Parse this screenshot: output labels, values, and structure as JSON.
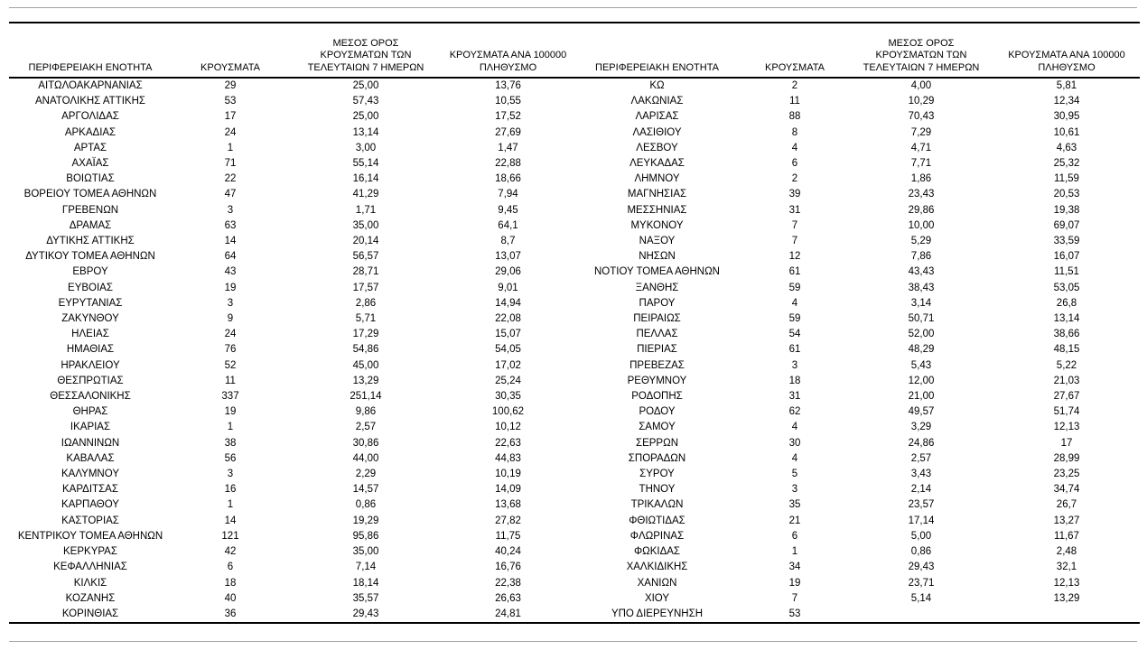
{
  "table": {
    "headers": {
      "region": "ΠΕΡΙΦΕΡΕΙΑΚΗ ΕΝΟΤΗΤΑ",
      "cases": "ΚΡΟΥΣΜΑΤΑ",
      "avg7_line1": "ΜΕΣΟΣ ΟΡΟΣ",
      "avg7_line2": "ΚΡΟΥΣΜΑΤΩΝ ΤΩΝ",
      "avg7_line3": "ΤΕΛΕΥΤΑΙΩΝ 7 ΗΜΕΡΩΝ",
      "per100k_line1": "ΚΡΟΥΣΜΑΤΑ ΑΝΑ 100000",
      "per100k_line2": "ΠΛΗΘΥΣΜΟ"
    },
    "left_rows": [
      [
        "ΑΙΤΩΛΟΑΚΑΡΝΑΝΙΑΣ",
        "29",
        "25,00",
        "13,76"
      ],
      [
        "ΑΝΑΤΟΛΙΚΗΣ ΑΤΤΙΚΗΣ",
        "53",
        "57,43",
        "10,55"
      ],
      [
        "ΑΡΓΟΛΙΔΑΣ",
        "17",
        "25,00",
        "17,52"
      ],
      [
        "ΑΡΚΑΔΙΑΣ",
        "24",
        "13,14",
        "27,69"
      ],
      [
        "ΑΡΤΑΣ",
        "1",
        "3,00",
        "1,47"
      ],
      [
        "ΑΧΑΪΑΣ",
        "71",
        "55,14",
        "22,88"
      ],
      [
        "ΒΟΙΩΤΙΑΣ",
        "22",
        "16,14",
        "18,66"
      ],
      [
        "ΒΟΡΕΙΟΥ ΤΟΜΕΑ ΑΘΗΝΩΝ",
        "47",
        "41,29",
        "7,94"
      ],
      [
        "ΓΡΕΒΕΝΩΝ",
        "3",
        "1,71",
        "9,45"
      ],
      [
        "ΔΡΑΜΑΣ",
        "63",
        "35,00",
        "64,1"
      ],
      [
        "ΔΥΤΙΚΗΣ ΑΤΤΙΚΗΣ",
        "14",
        "20,14",
        "8,7"
      ],
      [
        "ΔΥΤΙΚΟΥ ΤΟΜΕΑ ΑΘΗΝΩΝ",
        "64",
        "56,57",
        "13,07"
      ],
      [
        "ΕΒΡΟΥ",
        "43",
        "28,71",
        "29,06"
      ],
      [
        "ΕΥΒΟΙΑΣ",
        "19",
        "17,57",
        "9,01"
      ],
      [
        "ΕΥΡΥΤΑΝΙΑΣ",
        "3",
        "2,86",
        "14,94"
      ],
      [
        "ΖΑΚΥΝΘΟΥ",
        "9",
        "5,71",
        "22,08"
      ],
      [
        "ΗΛΕΙΑΣ",
        "24",
        "17,29",
        "15,07"
      ],
      [
        "ΗΜΑΘΙΑΣ",
        "76",
        "54,86",
        "54,05"
      ],
      [
        "ΗΡΑΚΛΕΙΟΥ",
        "52",
        "45,00",
        "17,02"
      ],
      [
        "ΘΕΣΠΡΩΤΙΑΣ",
        "11",
        "13,29",
        "25,24"
      ],
      [
        "ΘΕΣΣΑΛΟΝΙΚΗΣ",
        "337",
        "251,14",
        "30,35"
      ],
      [
        "ΘΗΡΑΣ",
        "19",
        "9,86",
        "100,62"
      ],
      [
        "ΙΚΑΡΙΑΣ",
        "1",
        "2,57",
        "10,12"
      ],
      [
        "ΙΩΑΝΝΙΝΩΝ",
        "38",
        "30,86",
        "22,63"
      ],
      [
        "ΚΑΒΑΛΑΣ",
        "56",
        "44,00",
        "44,83"
      ],
      [
        "ΚΑΛΥΜΝΟΥ",
        "3",
        "2,29",
        "10,19"
      ],
      [
        "ΚΑΡΔΙΤΣΑΣ",
        "16",
        "14,57",
        "14,09"
      ],
      [
        "ΚΑΡΠΑΘΟΥ",
        "1",
        "0,86",
        "13,68"
      ],
      [
        "ΚΑΣΤΟΡΙΑΣ",
        "14",
        "19,29",
        "27,82"
      ],
      [
        "ΚΕΝΤΡΙΚΟΥ ΤΟΜΕΑ ΑΘΗΝΩΝ",
        "121",
        "95,86",
        "11,75"
      ],
      [
        "ΚΕΡΚΥΡΑΣ",
        "42",
        "35,00",
        "40,24"
      ],
      [
        "ΚΕΦΑΛΛΗΝΙΑΣ",
        "6",
        "7,14",
        "16,76"
      ],
      [
        "ΚΙΛΚΙΣ",
        "18",
        "18,14",
        "22,38"
      ],
      [
        "ΚΟΖΑΝΗΣ",
        "40",
        "35,57",
        "26,63"
      ],
      [
        "ΚΟΡΙΝΘΙΑΣ",
        "36",
        "29,43",
        "24,81"
      ]
    ],
    "right_rows": [
      [
        "ΚΩ",
        "2",
        "4,00",
        "5,81"
      ],
      [
        "ΛΑΚΩΝΙΑΣ",
        "11",
        "10,29",
        "12,34"
      ],
      [
        "ΛΑΡΙΣΑΣ",
        "88",
        "70,43",
        "30,95"
      ],
      [
        "ΛΑΣΙΘΙΟΥ",
        "8",
        "7,29",
        "10,61"
      ],
      [
        "ΛΕΣΒΟΥ",
        "4",
        "4,71",
        "4,63"
      ],
      [
        "ΛΕΥΚΑΔΑΣ",
        "6",
        "7,71",
        "25,32"
      ],
      [
        "ΛΗΜΝΟΥ",
        "2",
        "1,86",
        "11,59"
      ],
      [
        "ΜΑΓΝΗΣΙΑΣ",
        "39",
        "23,43",
        "20,53"
      ],
      [
        "ΜΕΣΣΗΝΙΑΣ",
        "31",
        "29,86",
        "19,38"
      ],
      [
        "ΜΥΚΟΝΟΥ",
        "7",
        "10,00",
        "69,07"
      ],
      [
        "ΝΑΞΟΥ",
        "7",
        "5,29",
        "33,59"
      ],
      [
        "ΝΗΣΩΝ",
        "12",
        "7,86",
        "16,07"
      ],
      [
        "ΝΟΤΙΟΥ ΤΟΜΕΑ ΑΘΗΝΩΝ",
        "61",
        "43,43",
        "11,51"
      ],
      [
        "ΞΑΝΘΗΣ",
        "59",
        "38,43",
        "53,05"
      ],
      [
        "ΠΑΡΟΥ",
        "4",
        "3,14",
        "26,8"
      ],
      [
        "ΠΕΙΡΑΙΩΣ",
        "59",
        "50,71",
        "13,14"
      ],
      [
        "ΠΕΛΛΑΣ",
        "54",
        "52,00",
        "38,66"
      ],
      [
        "ΠΙΕΡΙΑΣ",
        "61",
        "48,29",
        "48,15"
      ],
      [
        "ΠΡΕΒΕΖΑΣ",
        "3",
        "5,43",
        "5,22"
      ],
      [
        "ΡΕΘΥΜΝΟΥ",
        "18",
        "12,00",
        "21,03"
      ],
      [
        "ΡΟΔΟΠΗΣ",
        "31",
        "21,00",
        "27,67"
      ],
      [
        "ΡΟΔΟΥ",
        "62",
        "49,57",
        "51,74"
      ],
      [
        "ΣΑΜΟΥ",
        "4",
        "3,29",
        "12,13"
      ],
      [
        "ΣΕΡΡΩΝ",
        "30",
        "24,86",
        "17"
      ],
      [
        "ΣΠΟΡΑΔΩΝ",
        "4",
        "2,57",
        "28,99"
      ],
      [
        "ΣΥΡΟΥ",
        "5",
        "3,43",
        "23,25"
      ],
      [
        "ΤΗΝΟΥ",
        "3",
        "2,14",
        "34,74"
      ],
      [
        "ΤΡΙΚΑΛΩΝ",
        "35",
        "23,57",
        "26,7"
      ],
      [
        "ΦΘΙΩΤΙΔΑΣ",
        "21",
        "17,14",
        "13,27"
      ],
      [
        "ΦΛΩΡΙΝΑΣ",
        "6",
        "5,00",
        "11,67"
      ],
      [
        "ΦΩΚΙΔΑΣ",
        "1",
        "0,86",
        "2,48"
      ],
      [
        "ΧΑΛΚΙΔΙΚΗΣ",
        "34",
        "29,43",
        "32,1"
      ],
      [
        "ΧΑΝΙΩΝ",
        "19",
        "23,71",
        "12,13"
      ],
      [
        "ΧΙΟΥ",
        "7",
        "5,14",
        "13,29"
      ],
      [
        "ΥΠΟ ΔΙΕΡΕΥΝΗΣΗ",
        "53",
        "",
        ""
      ]
    ]
  }
}
